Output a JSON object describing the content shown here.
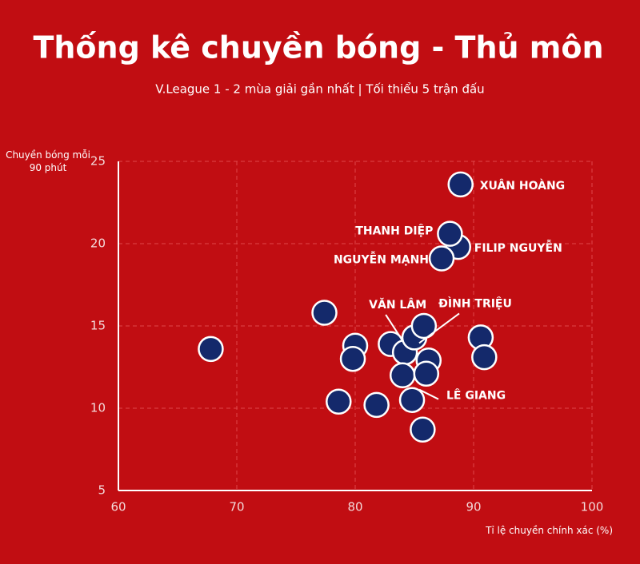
{
  "chart_data": {
    "type": "scatter",
    "title": "Thống kê chuyền bóng - Thủ môn",
    "subtitle": "V.League 1 - 2 mùa giải gần nhất | Tối thiểu 5 trận đấu",
    "y_label": "Chuyền bóng mỗi 90 phút",
    "x_label": "Tỉ lệ chuyền chính xác (%)",
    "x": [
      67.8,
      77.4,
      80.0,
      79.8,
      78.6,
      81.8,
      83.0,
      84.2,
      85.0,
      85.8,
      86.2,
      84.0,
      86.0,
      84.8,
      85.7,
      90.6,
      90.9,
      88.9,
      88.7,
      88.0,
      87.3
    ],
    "values": [
      13.6,
      15.8,
      13.8,
      13.0,
      10.4,
      10.2,
      13.9,
      13.4,
      14.3,
      15.0,
      12.9,
      12.0,
      12.1,
      10.5,
      8.7,
      14.3,
      13.1,
      23.6,
      19.8,
      20.6,
      19.1
    ],
    "labels": [
      null,
      null,
      null,
      null,
      null,
      null,
      null,
      "VĂN LÂM",
      "ĐÌNH TRIỆU",
      null,
      null,
      null,
      null,
      "LÊ GIANG",
      null,
      null,
      null,
      "XUÂN HOÀNG",
      "FILIP NGUYỄN",
      "THANH DIỆP",
      "NGUYỄN MẠNH"
    ],
    "color": "#14296b",
    "xlim": [
      60,
      100
    ],
    "xticks": [
      60,
      70,
      80,
      90,
      100
    ],
    "ylim": [
      5,
      25
    ],
    "yticks": [
      5,
      10,
      15,
      20,
      25
    ],
    "grid": true
  }
}
